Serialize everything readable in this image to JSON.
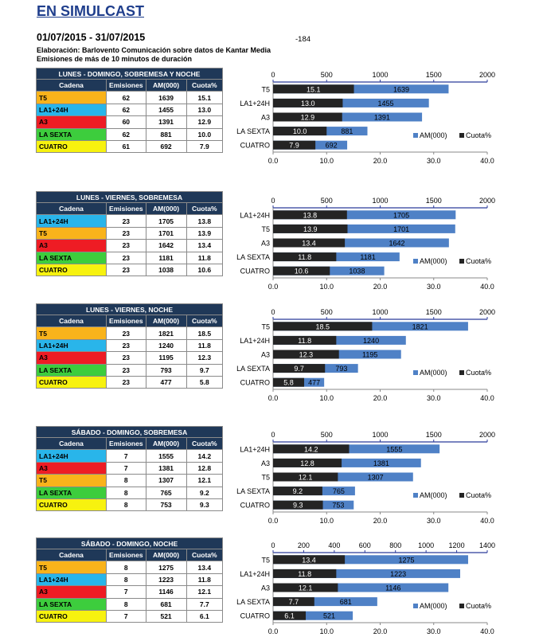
{
  "header": {
    "title": "EN SIMULCAST",
    "period": "01/07/2015 - 31/07/2015",
    "number": "-184",
    "note1": "Elaboración: Barlovento Comunicación sobre datos de Kantar Media",
    "note2": "Emisiones de más de 10 minutos de duración"
  },
  "columns": [
    "Cadena",
    "Emisiones",
    "AM(000)",
    "Cuota%"
  ],
  "colors": {
    "T5": "#f9b31b",
    "LA1+24H": "#29b5ea",
    "A3": "#ee1c24",
    "LA SEXTA": "#3dcd3d",
    "CUATRO": "#f7f20f",
    "am_bar": "#4f81c6",
    "cuota_bar": "#242424",
    "header_bg": "#1f3858"
  },
  "tables": [
    {
      "title": "LUNES - DOMINGO, SOBREMESA Y NOCHE",
      "rows": [
        {
          "cadena": "T5",
          "emisiones": "62",
          "am": "1639",
          "cuota": "15.1"
        },
        {
          "cadena": "LA1+24H",
          "emisiones": "62",
          "am": "1455",
          "cuota": "13.0"
        },
        {
          "cadena": "A3",
          "emisiones": "60",
          "am": "1391",
          "cuota": "12.9"
        },
        {
          "cadena": "LA SEXTA",
          "emisiones": "62",
          "am": "881",
          "cuota": "10.0"
        },
        {
          "cadena": "CUATRO",
          "emisiones": "61",
          "am": "692",
          "cuota": "7.9"
        }
      ]
    },
    {
      "title": "LUNES - VIERNES, SOBREMESA",
      "rows": [
        {
          "cadena": "LA1+24H",
          "emisiones": "23",
          "am": "1705",
          "cuota": "13.8"
        },
        {
          "cadena": "T5",
          "emisiones": "23",
          "am": "1701",
          "cuota": "13.9"
        },
        {
          "cadena": "A3",
          "emisiones": "23",
          "am": "1642",
          "cuota": "13.4"
        },
        {
          "cadena": "LA SEXTA",
          "emisiones": "23",
          "am": "1181",
          "cuota": "11.8"
        },
        {
          "cadena": "CUATRO",
          "emisiones": "23",
          "am": "1038",
          "cuota": "10.6"
        }
      ]
    },
    {
      "title": "LUNES - VIERNES, NOCHE",
      "rows": [
        {
          "cadena": "T5",
          "emisiones": "23",
          "am": "1821",
          "cuota": "18.5"
        },
        {
          "cadena": "LA1+24H",
          "emisiones": "23",
          "am": "1240",
          "cuota": "11.8"
        },
        {
          "cadena": "A3",
          "emisiones": "23",
          "am": "1195",
          "cuota": "12.3"
        },
        {
          "cadena": "LA SEXTA",
          "emisiones": "23",
          "am": "793",
          "cuota": "9.7"
        },
        {
          "cadena": "CUATRO",
          "emisiones": "23",
          "am": "477",
          "cuota": "5.8"
        }
      ]
    },
    {
      "title": "SÁBADO - DOMINGO, SOBREMESA",
      "rows": [
        {
          "cadena": "LA1+24H",
          "emisiones": "7",
          "am": "1555",
          "cuota": "14.2"
        },
        {
          "cadena": "A3",
          "emisiones": "7",
          "am": "1381",
          "cuota": "12.8"
        },
        {
          "cadena": "T5",
          "emisiones": "8",
          "am": "1307",
          "cuota": "12.1"
        },
        {
          "cadena": "LA SEXTA",
          "emisiones": "8",
          "am": "765",
          "cuota": "9.2"
        },
        {
          "cadena": "CUATRO",
          "emisiones": "8",
          "am": "753",
          "cuota": "9.3"
        }
      ]
    },
    {
      "title": "SÁBADO - DOMINGO, NOCHE",
      "rows": [
        {
          "cadena": "T5",
          "emisiones": "8",
          "am": "1275",
          "cuota": "13.4"
        },
        {
          "cadena": "LA1+24H",
          "emisiones": "8",
          "am": "1223",
          "cuota": "11.8"
        },
        {
          "cadena": "A3",
          "emisiones": "7",
          "am": "1146",
          "cuota": "12.1"
        },
        {
          "cadena": "LA SEXTA",
          "emisiones": "8",
          "am": "681",
          "cuota": "7.7"
        },
        {
          "cadena": "CUATRO",
          "emisiones": "7",
          "am": "521",
          "cuota": "6.1"
        }
      ]
    }
  ],
  "chart_data": [
    {
      "type": "bar",
      "orientation": "horizontal",
      "categories": [
        "T5",
        "LA1+24H",
        "A3",
        "LA SEXTA",
        "CUATRO"
      ],
      "series": [
        {
          "name": "AM(000)",
          "axis": "top",
          "values": [
            1639,
            1455,
            1391,
            881,
            692
          ]
        },
        {
          "name": "Cuota%",
          "axis": "bottom",
          "values": [
            15.1,
            13.0,
            12.9,
            10.0,
            7.9
          ]
        }
      ],
      "top_axis": {
        "range": [
          0,
          2000
        ],
        "ticks": [
          "0",
          "500",
          "1000",
          "1500",
          "2000"
        ]
      },
      "bottom_axis": {
        "range": [
          0,
          40
        ],
        "ticks": [
          "0.0",
          "10.0",
          "20.0",
          "30.0",
          "40.0"
        ]
      },
      "cuota_labels": [
        "15.1",
        "13.0",
        "12.9",
        "10.0",
        "7.9"
      ],
      "am_labels": [
        "1639",
        "1455",
        "1391",
        "881",
        "692"
      ],
      "legend": [
        "AM(000)",
        "Cuota%"
      ],
      "legend_position": "bottom-right"
    },
    {
      "type": "bar",
      "orientation": "horizontal",
      "categories": [
        "LA1+24H",
        "T5",
        "A3",
        "LA SEXTA",
        "CUATRO"
      ],
      "series": [
        {
          "name": "AM(000)",
          "axis": "top",
          "values": [
            1705,
            1701,
            1642,
            1181,
            1038
          ]
        },
        {
          "name": "Cuota%",
          "axis": "bottom",
          "values": [
            13.8,
            13.9,
            13.4,
            11.8,
            10.6
          ]
        }
      ],
      "top_axis": {
        "range": [
          0,
          2000
        ],
        "ticks": [
          "0",
          "500",
          "1000",
          "1500",
          "2000"
        ]
      },
      "bottom_axis": {
        "range": [
          0,
          40
        ],
        "ticks": [
          "0.0",
          "10.0",
          "20.0",
          "30.0",
          "40.0"
        ]
      },
      "cuota_labels": [
        "13.8",
        "13.9",
        "13.4",
        "11.8",
        "10.6"
      ],
      "am_labels": [
        "1705",
        "1701",
        "1642",
        "1181",
        "1038"
      ],
      "legend": [
        "AM(000)",
        "Cuota%"
      ],
      "legend_position": "bottom-right"
    },
    {
      "type": "bar",
      "orientation": "horizontal",
      "categories": [
        "T5",
        "LA1+24H",
        "A3",
        "LA SEXTA",
        "CUATRO"
      ],
      "series": [
        {
          "name": "AM(000)",
          "axis": "top",
          "values": [
            1821,
            1240,
            1195,
            793,
            477
          ]
        },
        {
          "name": "Cuota%",
          "axis": "bottom",
          "values": [
            18.5,
            11.8,
            12.3,
            9.7,
            5.8
          ]
        }
      ],
      "top_axis": {
        "range": [
          0,
          2000
        ],
        "ticks": [
          "0",
          "500",
          "1000",
          "1500",
          "2000"
        ]
      },
      "bottom_axis": {
        "range": [
          0,
          40
        ],
        "ticks": [
          "0.0",
          "10.0",
          "20.0",
          "30.0",
          "40.0"
        ]
      },
      "cuota_labels": [
        "18.5",
        "11.8",
        "12.3",
        "9.7",
        "5.8"
      ],
      "am_labels": [
        "1821",
        "1240",
        "1195",
        "793",
        "477"
      ],
      "legend": [
        "AM(000)",
        "Cuota%"
      ],
      "legend_position": "bottom-right"
    },
    {
      "type": "bar",
      "orientation": "horizontal",
      "categories": [
        "LA1+24H",
        "A3",
        "T5",
        "LA SEXTA",
        "CUATRO"
      ],
      "series": [
        {
          "name": "AM(000)",
          "axis": "top",
          "values": [
            1555,
            1381,
            1307,
            765,
            753
          ]
        },
        {
          "name": "Cuota%",
          "axis": "bottom",
          "values": [
            14.2,
            12.8,
            12.1,
            9.2,
            9.3
          ]
        }
      ],
      "top_axis": {
        "range": [
          0,
          2000
        ],
        "ticks": [
          "0",
          "500",
          "1000",
          "1500",
          "2000"
        ]
      },
      "bottom_axis": {
        "range": [
          0,
          40
        ],
        "ticks": [
          "0.0",
          "10.0",
          "20.0",
          "30.0",
          "40.0"
        ]
      },
      "cuota_labels": [
        "14.2",
        "12.8",
        "12.1",
        "9.2",
        "9.3"
      ],
      "am_labels": [
        "1555",
        "1381",
        "1307",
        "765",
        "753"
      ],
      "legend": [
        "AM(000)",
        "Cuota%"
      ],
      "legend_position": "bottom-right"
    },
    {
      "type": "bar",
      "orientation": "horizontal",
      "categories": [
        "T5",
        "LA1+24H",
        "A3",
        "LA SEXTA",
        "CUATRO"
      ],
      "series": [
        {
          "name": "AM(000)",
          "axis": "top",
          "values": [
            1275,
            1223,
            1146,
            681,
            521
          ]
        },
        {
          "name": "Cuota%",
          "axis": "bottom",
          "values": [
            13.4,
            11.8,
            12.1,
            7.7,
            6.1
          ]
        }
      ],
      "top_axis": {
        "range": [
          0,
          1400
        ],
        "ticks": [
          "0",
          "200",
          "400",
          "600",
          "800",
          "1000",
          "1200",
          "1400"
        ]
      },
      "bottom_axis": {
        "range": [
          0,
          40
        ],
        "ticks": [
          "0.0",
          "10.0",
          "20.0",
          "30.0",
          "40.0"
        ]
      },
      "cuota_labels": [
        "13.4",
        "11.8",
        "12.1",
        "7.7",
        "6.1"
      ],
      "am_labels": [
        "1275",
        "1223",
        "1146",
        "681",
        "521"
      ],
      "legend": [
        "AM(000)",
        "Cuota%"
      ],
      "legend_position": "bottom-right"
    }
  ]
}
